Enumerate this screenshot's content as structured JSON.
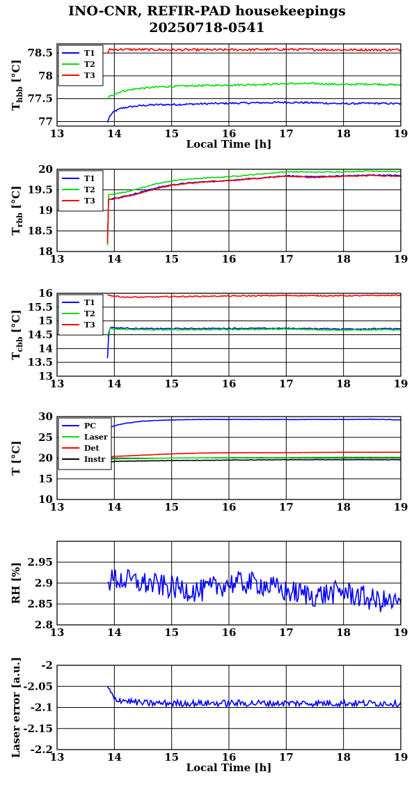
{
  "title": {
    "line1": "INO-CNR, REFIR-PAD housekeepings",
    "line2": "20250718-0541"
  },
  "colors": {
    "blue": "#0000ff",
    "green": "#00dd00",
    "red": "#ff0000",
    "black": "#000000"
  },
  "chart_data": [
    {
      "type": "line",
      "ylabel_main": "T",
      "ylabel_sub": "hbb",
      "ylabel_unit": "[°C]",
      "xlabel": "Local Time [h]",
      "xlim": [
        13,
        19
      ],
      "ylim": [
        76.9,
        78.7
      ],
      "x_ticks": [
        "13",
        "14",
        "15",
        "16",
        "17",
        "18",
        "19"
      ],
      "y_ticks": [
        {
          "v": 77,
          "label": "77"
        },
        {
          "v": 77.5,
          "label": "77.5"
        },
        {
          "v": 78,
          "label": "78"
        },
        {
          "v": 78.5,
          "label": "78.5"
        }
      ],
      "grid": true,
      "legend": "top-left",
      "series": [
        {
          "name": "T1",
          "color": "blue",
          "x": [
            13.88,
            13.92,
            14.0,
            14.1,
            14.2,
            14.4,
            14.6,
            14.8,
            15.0,
            15.3,
            15.6,
            16.0,
            16.5,
            17.0,
            17.5,
            18.0,
            18.5,
            19.0
          ],
          "y": [
            76.98,
            77.12,
            77.22,
            77.28,
            77.31,
            77.34,
            77.36,
            77.37,
            77.37,
            77.38,
            77.39,
            77.4,
            77.41,
            77.42,
            77.41,
            77.39,
            77.4,
            77.39
          ],
          "noise": 0.02
        },
        {
          "name": "T2",
          "color": "green",
          "x": [
            13.88,
            13.92,
            14.0,
            14.1,
            14.2,
            14.4,
            14.6,
            14.8,
            15.0,
            15.3,
            15.6,
            16.0,
            16.5,
            17.0,
            17.5,
            18.0,
            18.5,
            19.0
          ],
          "y": [
            77.5,
            77.55,
            77.6,
            77.65,
            77.68,
            77.72,
            77.74,
            77.76,
            77.77,
            77.78,
            77.79,
            77.8,
            77.81,
            77.83,
            77.83,
            77.81,
            77.82,
            77.8
          ],
          "noise": 0.02
        },
        {
          "name": "T3",
          "color": "red",
          "x": [
            13.88,
            13.92,
            14.0,
            15.0,
            16.0,
            17.0,
            18.0,
            19.0
          ],
          "y": [
            78.5,
            78.58,
            78.58,
            78.57,
            78.57,
            78.58,
            78.57,
            78.57
          ],
          "noise": 0.025
        }
      ]
    },
    {
      "type": "line",
      "ylabel_main": "T",
      "ylabel_sub": "rbb",
      "ylabel_unit": "[°C]",
      "xlabel": "",
      "xlim": [
        13,
        19
      ],
      "ylim": [
        18,
        20
      ],
      "x_ticks": [
        "13",
        "14",
        "15",
        "16",
        "17",
        "18",
        "19"
      ],
      "y_ticks": [
        {
          "v": 18,
          "label": "18"
        },
        {
          "v": 18.5,
          "label": "18.5"
        },
        {
          "v": 19,
          "label": "19"
        },
        {
          "v": 19.5,
          "label": "19.5"
        },
        {
          "v": 20,
          "label": "20"
        }
      ],
      "grid": true,
      "legend": "top-left",
      "series": [
        {
          "name": "T1",
          "color": "blue",
          "x": [
            13.88,
            13.9,
            13.92,
            14.0,
            14.2,
            14.4,
            14.6,
            14.8,
            15.0,
            15.3,
            15.6,
            16.0,
            16.5,
            17.0,
            17.5,
            18.0,
            18.5,
            19.0
          ],
          "y": [
            18.3,
            19.3,
            19.28,
            19.3,
            19.35,
            19.42,
            19.5,
            19.57,
            19.62,
            19.67,
            19.7,
            19.73,
            19.78,
            19.84,
            19.82,
            19.84,
            19.86,
            19.85
          ],
          "noise": 0.012
        },
        {
          "name": "T2",
          "color": "green",
          "x": [
            13.88,
            13.9,
            13.92,
            14.0,
            14.2,
            14.4,
            14.6,
            14.8,
            15.0,
            15.3,
            15.6,
            16.0,
            16.5,
            17.0,
            17.5,
            18.0,
            18.5,
            19.0
          ],
          "y": [
            18.15,
            19.4,
            19.38,
            19.4,
            19.45,
            19.52,
            19.6,
            19.66,
            19.72,
            19.76,
            19.79,
            19.82,
            19.88,
            19.94,
            19.93,
            19.94,
            19.96,
            19.94
          ],
          "noise": 0.012
        },
        {
          "name": "T3",
          "color": "red",
          "x": [
            13.88,
            13.9,
            13.92,
            14.0,
            14.2,
            14.4,
            14.6,
            14.8,
            15.0,
            15.3,
            15.6,
            16.0,
            16.5,
            17.0,
            17.5,
            18.0,
            18.5,
            19.0
          ],
          "y": [
            18.2,
            19.28,
            19.26,
            19.28,
            19.33,
            19.4,
            19.48,
            19.55,
            19.61,
            19.66,
            19.69,
            19.72,
            19.78,
            19.83,
            19.8,
            19.83,
            19.85,
            19.83
          ],
          "noise": 0.012
        }
      ]
    },
    {
      "type": "line",
      "ylabel_main": "T",
      "ylabel_sub": "cbb",
      "ylabel_unit": "[°C]",
      "xlabel": "",
      "xlim": [
        13,
        19
      ],
      "ylim": [
        13,
        16
      ],
      "x_ticks": [
        "13",
        "14",
        "15",
        "16",
        "17",
        "18",
        "19"
      ],
      "y_ticks": [
        {
          "v": 13,
          "label": "13"
        },
        {
          "v": 13.5,
          "label": "13.5"
        },
        {
          "v": 14,
          "label": "14"
        },
        {
          "v": 14.5,
          "label": "14.5"
        },
        {
          "v": 15,
          "label": "15"
        },
        {
          "v": 15.5,
          "label": "15.5"
        },
        {
          "v": 16,
          "label": "16"
        }
      ],
      "grid": true,
      "legend": "top-left",
      "series": [
        {
          "name": "T1",
          "color": "blue",
          "x": [
            13.88,
            13.9,
            13.93,
            14.0,
            14.5,
            15.0,
            16.0,
            17.0,
            18.0,
            19.0
          ],
          "y": [
            13.65,
            14.5,
            14.78,
            14.75,
            14.72,
            14.72,
            14.73,
            14.73,
            14.71,
            14.72
          ],
          "noise": 0.02
        },
        {
          "name": "T2",
          "color": "green",
          "x": [
            13.88,
            13.9,
            13.93,
            14.0,
            14.5,
            15.0,
            16.0,
            17.0,
            18.0,
            19.0
          ],
          "y": [
            14.45,
            14.6,
            14.72,
            14.7,
            14.68,
            14.68,
            14.69,
            14.7,
            14.67,
            14.68
          ],
          "noise": 0.02
        },
        {
          "name": "T3",
          "color": "red",
          "x": [
            13.88,
            13.92,
            14.0,
            14.2,
            14.5,
            15.0,
            16.0,
            17.0,
            18.0,
            19.0
          ],
          "y": [
            15.95,
            15.92,
            15.9,
            15.86,
            15.86,
            15.88,
            15.9,
            15.92,
            15.91,
            15.93
          ],
          "noise": 0.02
        }
      ]
    },
    {
      "type": "line",
      "ylabel_main": "T [°C]",
      "ylabel_sub": "",
      "ylabel_unit": "",
      "xlabel": "",
      "xlim": [
        13,
        19
      ],
      "ylim": [
        10,
        30
      ],
      "x_ticks": [
        "13",
        "14",
        "15",
        "16",
        "17",
        "18",
        "19"
      ],
      "y_ticks": [
        {
          "v": 10,
          "label": "10"
        },
        {
          "v": 15,
          "label": "15"
        },
        {
          "v": 20,
          "label": "20"
        },
        {
          "v": 25,
          "label": "25"
        },
        {
          "v": 30,
          "label": "30"
        }
      ],
      "grid": true,
      "legend": "top-left",
      "series": [
        {
          "name": "PC",
          "color": "blue",
          "x": [
            13.88,
            14.0,
            14.2,
            14.5,
            14.8,
            15.0,
            15.5,
            16.0,
            17.0,
            18.0,
            18.5,
            19.0
          ],
          "y": [
            27.2,
            27.8,
            28.4,
            28.9,
            29.1,
            29.2,
            29.3,
            29.3,
            29.3,
            29.3,
            29.35,
            29.2
          ],
          "noise": 0.05
        },
        {
          "name": "Laser",
          "color": "green",
          "x": [
            13.88,
            14.0,
            14.5,
            15.0,
            16.0,
            17.0,
            18.0,
            19.0
          ],
          "y": [
            19.6,
            19.8,
            19.9,
            20.0,
            20.1,
            20.1,
            20.2,
            20.2
          ],
          "noise": 0.03
        },
        {
          "name": "Det",
          "color": "red",
          "x": [
            13.88,
            14.0,
            14.5,
            15.0,
            15.5,
            16.0,
            17.0,
            18.0,
            19.0
          ],
          "y": [
            20.2,
            20.4,
            20.7,
            21.0,
            21.2,
            21.3,
            21.3,
            21.4,
            21.4
          ],
          "noise": 0.03
        },
        {
          "name": "Instr",
          "color": "black",
          "x": [
            13.88,
            14.0,
            14.5,
            15.0,
            16.0,
            17.0,
            18.0,
            19.0
          ],
          "y": [
            19.0,
            19.2,
            19.3,
            19.4,
            19.5,
            19.6,
            19.6,
            19.6
          ],
          "noise": 0.05
        }
      ]
    },
    {
      "type": "line",
      "ylabel_main": "RH [%]",
      "ylabel_sub": "",
      "ylabel_unit": "",
      "xlabel": "",
      "xlim": [
        13,
        19
      ],
      "ylim": [
        2.8,
        3.0
      ],
      "x_ticks": [
        "13",
        "14",
        "15",
        "16",
        "17",
        "18",
        "19"
      ],
      "y_ticks": [
        {
          "v": 2.8,
          "label": "2.8"
        },
        {
          "v": 2.85,
          "label": "2.85"
        },
        {
          "v": 2.9,
          "label": "2.9"
        },
        {
          "v": 2.95,
          "label": "2.95"
        }
      ],
      "grid": true,
      "legend": "none",
      "series": [
        {
          "name": "",
          "color": "blue",
          "x": [
            13.88,
            14.0,
            14.5,
            15.0,
            15.5,
            16.0,
            16.5,
            17.0,
            17.5,
            18.0,
            18.5,
            19.0
          ],
          "y": [
            2.9,
            2.91,
            2.9,
            2.89,
            2.88,
            2.9,
            2.9,
            2.88,
            2.87,
            2.88,
            2.86,
            2.85
          ],
          "noise": 0.028
        }
      ]
    },
    {
      "type": "line",
      "ylabel_main": "Laser error [a.u.]",
      "ylabel_sub": "",
      "ylabel_unit": "",
      "xlabel": "Local Time [h]",
      "xlim": [
        13,
        19
      ],
      "ylim": [
        -2.2,
        -2.0
      ],
      "x_ticks": [
        "13",
        "14",
        "15",
        "16",
        "17",
        "18",
        "19"
      ],
      "y_ticks": [
        {
          "v": -2.2,
          "label": "-2.2"
        },
        {
          "v": -2.15,
          "label": "-2.15"
        },
        {
          "v": -2.1,
          "label": "-2.1"
        },
        {
          "v": -2.05,
          "label": "-2.05"
        },
        {
          "v": -2.0,
          "label": "-2"
        }
      ],
      "grid": true,
      "legend": "none",
      "series": [
        {
          "name": "",
          "color": "blue",
          "x": [
            13.88,
            13.92,
            13.95,
            14.0,
            14.5,
            15.0,
            16.0,
            17.0,
            18.0,
            19.0
          ],
          "y": [
            -2.05,
            -2.06,
            -2.07,
            -2.08,
            -2.09,
            -2.09,
            -2.09,
            -2.09,
            -2.09,
            -2.09
          ],
          "noise": 0.008
        }
      ]
    }
  ]
}
